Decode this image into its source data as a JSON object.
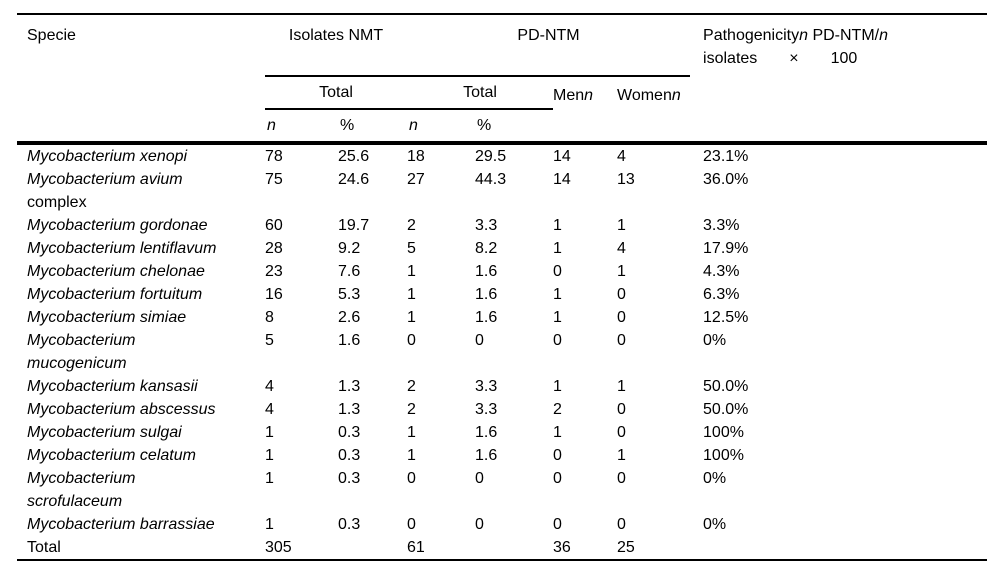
{
  "page": {
    "background": "#ffffff",
    "text_color": "#000000",
    "rule_color": "#000000"
  },
  "table": {
    "header": {
      "specie_label": "Specie",
      "isolates_group_label": "Isolates NMT",
      "pd_group_label": "PD-NTM",
      "pathogenicity_line1": [
        {
          "t": "Pathogenicity",
          "i": false
        },
        {
          "t": "n",
          "i": true
        },
        {
          "t": " PD-NTM/",
          "i": false
        },
        {
          "t": "n",
          "i": true
        }
      ],
      "pathogenicity_line2": "isolates  ×  100",
      "total_isolates_label": "Total",
      "total_pd_label": "Total",
      "men_label": "Men",
      "women_label": "Women",
      "n_symbol": "n",
      "n_col_label": "n",
      "pct_col_label": "%"
    },
    "column_keys": [
      "n_nmt",
      "pct_nmt",
      "n_pd",
      "pct_pd",
      "men",
      "women",
      "pathogenicity"
    ],
    "rows": [
      {
        "species": [
          {
            "t": "Mycobacterium xenopi",
            "i": true
          }
        ],
        "v": [
          "78",
          "25.6",
          "18",
          "29.5",
          "14",
          "4",
          "23.1%"
        ]
      },
      {
        "species": [
          {
            "t": "Mycobacterium avium",
            "i": true
          },
          {
            "t": "complex",
            "i": false
          }
        ],
        "v": [
          "75",
          "24.6",
          "27",
          "44.3",
          "14",
          "13",
          "36.0%"
        ]
      },
      {
        "species": [
          {
            "t": "Mycobacterium gordonae",
            "i": true
          }
        ],
        "v": [
          "60",
          "19.7",
          "2",
          "3.3",
          "1",
          "1",
          "3.3%"
        ]
      },
      {
        "species": [
          {
            "t": "Mycobacterium lentiflavum",
            "i": true
          }
        ],
        "v": [
          "28",
          "9.2",
          "5",
          "8.2",
          "1",
          "4",
          "17.9%"
        ]
      },
      {
        "species": [
          {
            "t": "Mycobacterium chelonae",
            "i": true
          }
        ],
        "v": [
          "23",
          "7.6",
          "1",
          "1.6",
          "0",
          "1",
          "4.3%"
        ]
      },
      {
        "species": [
          {
            "t": "Mycobacterium fortuitum",
            "i": true
          }
        ],
        "v": [
          "16",
          "5.3",
          "1",
          "1.6",
          "1",
          "0",
          "6.3%"
        ]
      },
      {
        "species": [
          {
            "t": "Mycobacterium simiae",
            "i": true
          }
        ],
        "v": [
          "8",
          "2.6",
          "1",
          "1.6",
          "1",
          "0",
          "12.5%"
        ]
      },
      {
        "species": [
          {
            "t": "Mycobacterium",
            "i": true
          },
          {
            "t": "mucogenicum",
            "i": true
          }
        ],
        "v": [
          "5",
          "1.6",
          "0",
          "0",
          "0",
          "0",
          "0%"
        ]
      },
      {
        "species": [
          {
            "t": "Mycobacterium kansasii",
            "i": true
          }
        ],
        "v": [
          "4",
          "1.3",
          "2",
          "3.3",
          "1",
          "1",
          "50.0%"
        ]
      },
      {
        "species": [
          {
            "t": "Mycobacterium abscessus",
            "i": true
          }
        ],
        "v": [
          "4",
          "1.3",
          "2",
          "3.3",
          "2",
          "0",
          "50.0%"
        ]
      },
      {
        "species": [
          {
            "t": "Mycobacterium sulgai",
            "i": true
          }
        ],
        "v": [
          "1",
          "0.3",
          "1",
          "1.6",
          "1",
          "0",
          "100%"
        ]
      },
      {
        "species": [
          {
            "t": "Mycobacterium celatum",
            "i": true
          }
        ],
        "v": [
          "1",
          "0.3",
          "1",
          "1.6",
          "0",
          "1",
          "100%"
        ]
      },
      {
        "species": [
          {
            "t": "Mycobacterium",
            "i": true
          },
          {
            "t": "scrofulaceum",
            "i": true
          }
        ],
        "v": [
          "1",
          "0.3",
          "0",
          "0",
          "0",
          "0",
          "0%"
        ]
      },
      {
        "species": [
          {
            "t": "Mycobacterium barrassiae",
            "i": true
          }
        ],
        "v": [
          "1",
          "0.3",
          "0",
          "0",
          "0",
          "0",
          "0%"
        ]
      },
      {
        "species": [
          {
            "t": "Total",
            "i": false
          }
        ],
        "v": [
          "305",
          "",
          "61",
          "",
          "36",
          "25",
          ""
        ]
      }
    ]
  }
}
